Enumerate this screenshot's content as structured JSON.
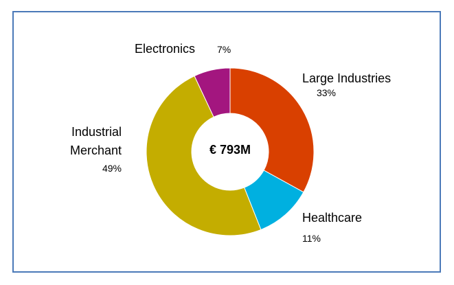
{
  "chart_data": {
    "type": "pie",
    "subtype": "donut",
    "center_label": "€ 793M",
    "categories": [
      "Large Industries",
      "Healthcare",
      "Industrial Merchant",
      "Electronics"
    ],
    "values": [
      33,
      11,
      49,
      7
    ],
    "label_percent": [
      "33%",
      "11%",
      "49%",
      "7%"
    ],
    "colors": [
      "#d94000",
      "#00b0e0",
      "#c4ad00",
      "#a3167f"
    ],
    "border_color": "#4a79b8"
  }
}
